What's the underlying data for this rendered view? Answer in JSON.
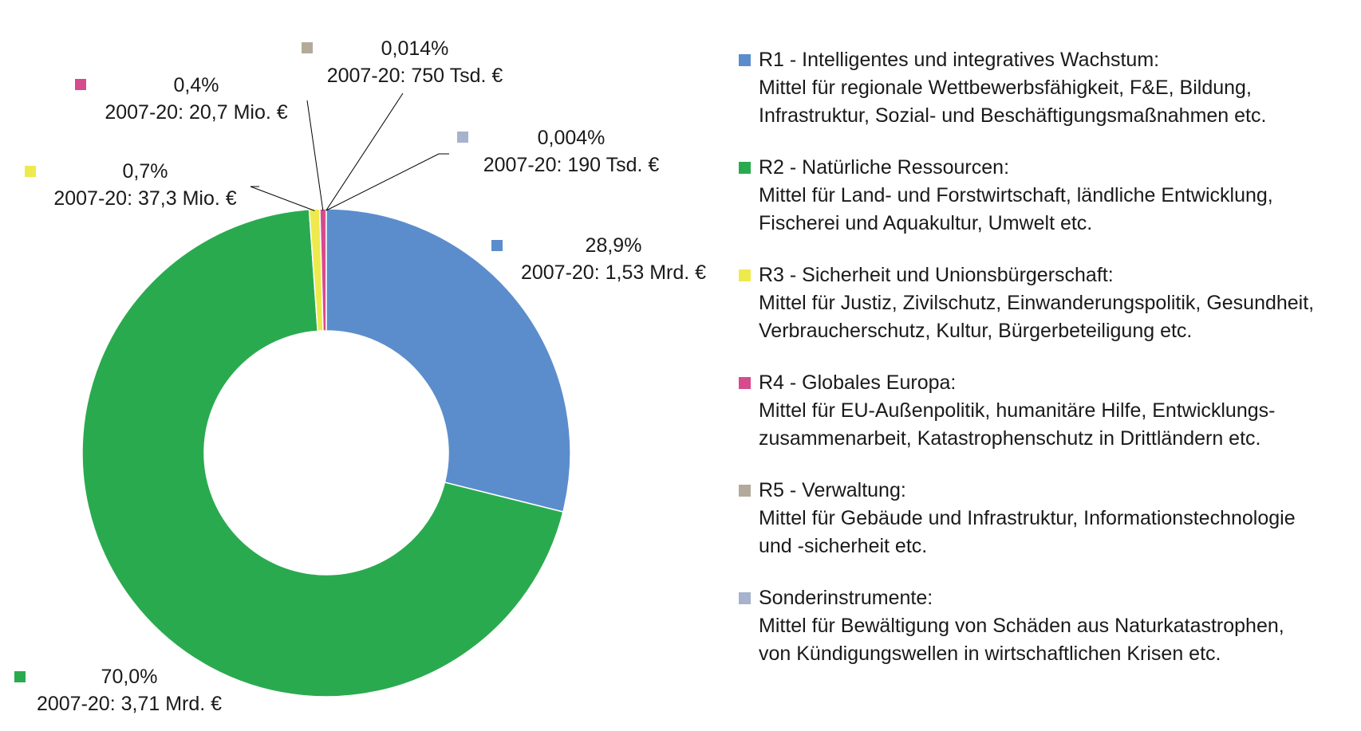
{
  "chart_data": {
    "type": "pie",
    "style": "donut",
    "slices": [
      {
        "name": "R1 - Intelligentes und integratives Wachstum:",
        "value": 28.9,
        "percent_label": "28,9%",
        "amount_label": "2007-20: 1,53 Mrd. €",
        "color": "#5b8dcc"
      },
      {
        "name": "R2 - Natürliche Ressourcen:",
        "value": 70.0,
        "percent_label": "70,0%",
        "amount_label": "2007-20: 3,71 Mrd. €",
        "color": "#2aaa4f"
      },
      {
        "name": "R3 - Sicherheit und Unionsbürgerschaft:",
        "value": 0.7,
        "percent_label": "0,7%",
        "amount_label": "2007-20: 37,3 Mio. €",
        "color": "#eeea4e"
      },
      {
        "name": "R4 - Globales Europa:",
        "value": 0.4,
        "percent_label": "0,4%",
        "amount_label": "2007-20: 20,7 Mio. €",
        "color": "#d74a8c"
      },
      {
        "name": "R5 - Verwaltung:",
        "value": 0.014,
        "percent_label": "0,014%",
        "amount_label": "2007-20: 750 Tsd. €",
        "color": "#b3aa9b"
      },
      {
        "name": "Sonderinstrumente:",
        "value": 0.004,
        "percent_label": "0,004%",
        "amount_label": "2007-20: 190 Tsd. €",
        "color": "#a7b2cc"
      }
    ]
  },
  "legend": [
    {
      "title": "R1 - Intelligentes und integratives Wachstum:",
      "desc": "Mittel für regionale Wettbewerbsfähigkeit, F&E, Bildung,\nInfrastruktur, Sozial- und Beschäftigungsmaßnahmen etc.",
      "color": "#5b8dcc"
    },
    {
      "title": "R2 - Natürliche Ressourcen:",
      "desc": "Mittel für Land- und Forstwirtschaft, ländliche Entwicklung,\nFischerei und Aquakultur, Umwelt etc.",
      "color": "#2aaa4f"
    },
    {
      "title": "R3 - Sicherheit und Unionsbürgerschaft:",
      "desc": "Mittel für Justiz, Zivilschutz, Einwanderungspolitik, Gesundheit,\nVerbraucherschutz, Kultur, Bürgerbeteiligung etc.",
      "color": "#eeea4e"
    },
    {
      "title": "R4 - Globales Europa:",
      "desc": "Mittel für EU-Außenpolitik, humanitäre Hilfe, Entwicklungs-\nzusammenarbeit, Katastrophenschutz in Drittländern etc.",
      "color": "#d74a8c"
    },
    {
      "title": "R5 - Verwaltung:",
      "desc": "Mittel für Gebäude und Infrastruktur, Informationstechnologie\nund -sicherheit etc.",
      "color": "#b3aa9b"
    },
    {
      "title": "Sonderinstrumente:",
      "desc": "Mittel für Bewältigung von Schäden aus Naturkatastrophen,\nvon Kündigungswellen in wirtschaftlichen Krisen etc.",
      "color": "#a7b2cc"
    }
  ]
}
